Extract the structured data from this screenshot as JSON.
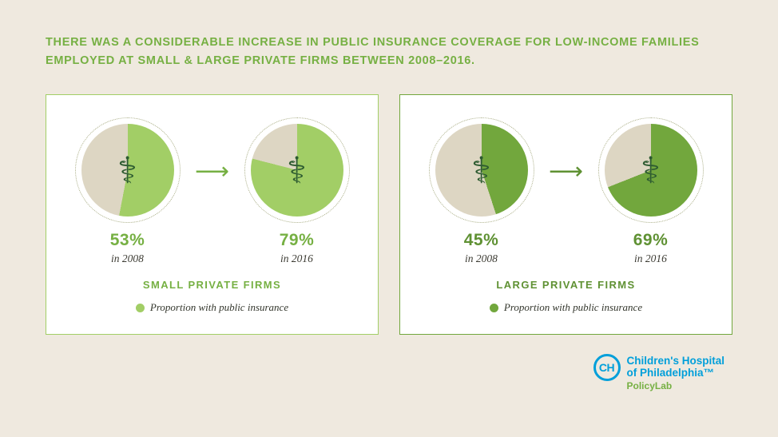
{
  "title": "THERE WAS A CONSIDERABLE INCREASE IN PUBLIC INSURANCE COVERAGE FOR LOW-INCOME FAMILIES EMPLOYED AT SMALL & LARGE PRIVATE FIRMS BETWEEN 2008–2016.",
  "colors": {
    "background": "#efe9df",
    "panel_bg": "#ffffff",
    "title_green": "#76b043",
    "pie_remainder": "#ddd6c3",
    "ring_dotted": "#a9ad85",
    "caduceus_green": "#2d5b31",
    "year_text": "#3c3b33",
    "legend_text": "#33362c",
    "chop_blue": "#009fda",
    "policylab_green": "#76b043"
  },
  "chart_data": [
    {
      "type": "pie",
      "title": "SMALL PRIVATE FIRMS",
      "series_color": "#a2ce66",
      "label_color": "#76b043",
      "border_color": "#a2ce66",
      "legend": "Proportion with public insurance",
      "categories": [
        "in 2008",
        "in 2016"
      ],
      "values": [
        53,
        79
      ],
      "pies": [
        {
          "value": 53,
          "label": "53%",
          "sublabel": "in 2008"
        },
        {
          "value": 79,
          "label": "79%",
          "sublabel": "in 2016"
        }
      ]
    },
    {
      "type": "pie",
      "title": "LARGE PRIVATE FIRMS",
      "series_color": "#72a73d",
      "label_color": "#5f9133",
      "border_color": "#72a73d",
      "legend": "Proportion with public insurance",
      "categories": [
        "in 2008",
        "in 2016"
      ],
      "values": [
        45,
        69
      ],
      "pies": [
        {
          "value": 45,
          "label": "45%",
          "sublabel": "in 2008"
        },
        {
          "value": 69,
          "label": "69%",
          "sublabel": "in 2016"
        }
      ]
    }
  ],
  "icons": {
    "caduceus": "⚕",
    "arrow": "⟶"
  },
  "logo": {
    "monogram": "CH",
    "line1": "Children's Hospital",
    "line2": "of Philadelphia™",
    "sub": "PolicyLab"
  }
}
